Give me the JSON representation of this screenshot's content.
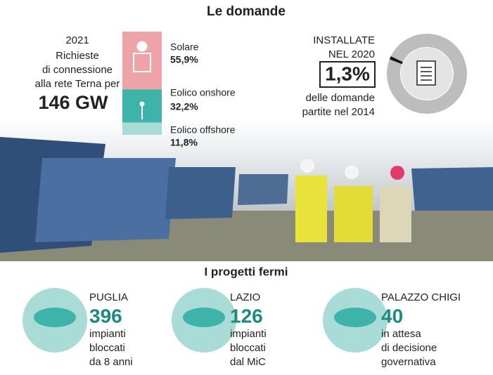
{
  "title": "Le domande",
  "requests": {
    "year": "2021",
    "lines": [
      "Richieste",
      "di connessione",
      "alla rete Terna per"
    ],
    "total": "146 GW"
  },
  "chart_data": [
    {
      "type": "stacked-bar",
      "series": [
        {
          "name": "Solare",
          "color": "#eea3a9",
          "values": [
            55.9
          ],
          "value_labels": [
            "55,9%"
          ]
        },
        {
          "name": "Eolico onshore",
          "color": "#3db3a9",
          "values": [
            32.2
          ],
          "value_labels": [
            "32,2%"
          ]
        },
        {
          "name": "Eolico offshore",
          "color": "#a9dcd6",
          "values": [
            11.8
          ],
          "value_labels": [
            "11,8%"
          ]
        }
      ]
    },
    {
      "type": "donut",
      "title": [
        "INSTALLATE",
        "NEL 2020"
      ],
      "values": [
        1.3
      ],
      "value_labels": [
        "1,3%"
      ],
      "subtitle": [
        "delle domande",
        "partite nel 2014"
      ],
      "color": "#111111",
      "rest_color": "#bdbdbd"
    }
  ],
  "section": {
    "title": "I progetti fermi",
    "items": [
      {
        "name": "PUGLIA",
        "value": "396",
        "lines": [
          "impianti",
          "bloccati",
          "da 8 anni"
        ]
      },
      {
        "name": "LAZIO",
        "value": "126",
        "lines": [
          "impianti",
          "bloccati",
          "dal MiC"
        ]
      },
      {
        "name": "PALAZZO CHIGI",
        "value": "40",
        "lines": [
          "in attesa",
          "di decisione",
          "governativa"
        ]
      }
    ]
  }
}
